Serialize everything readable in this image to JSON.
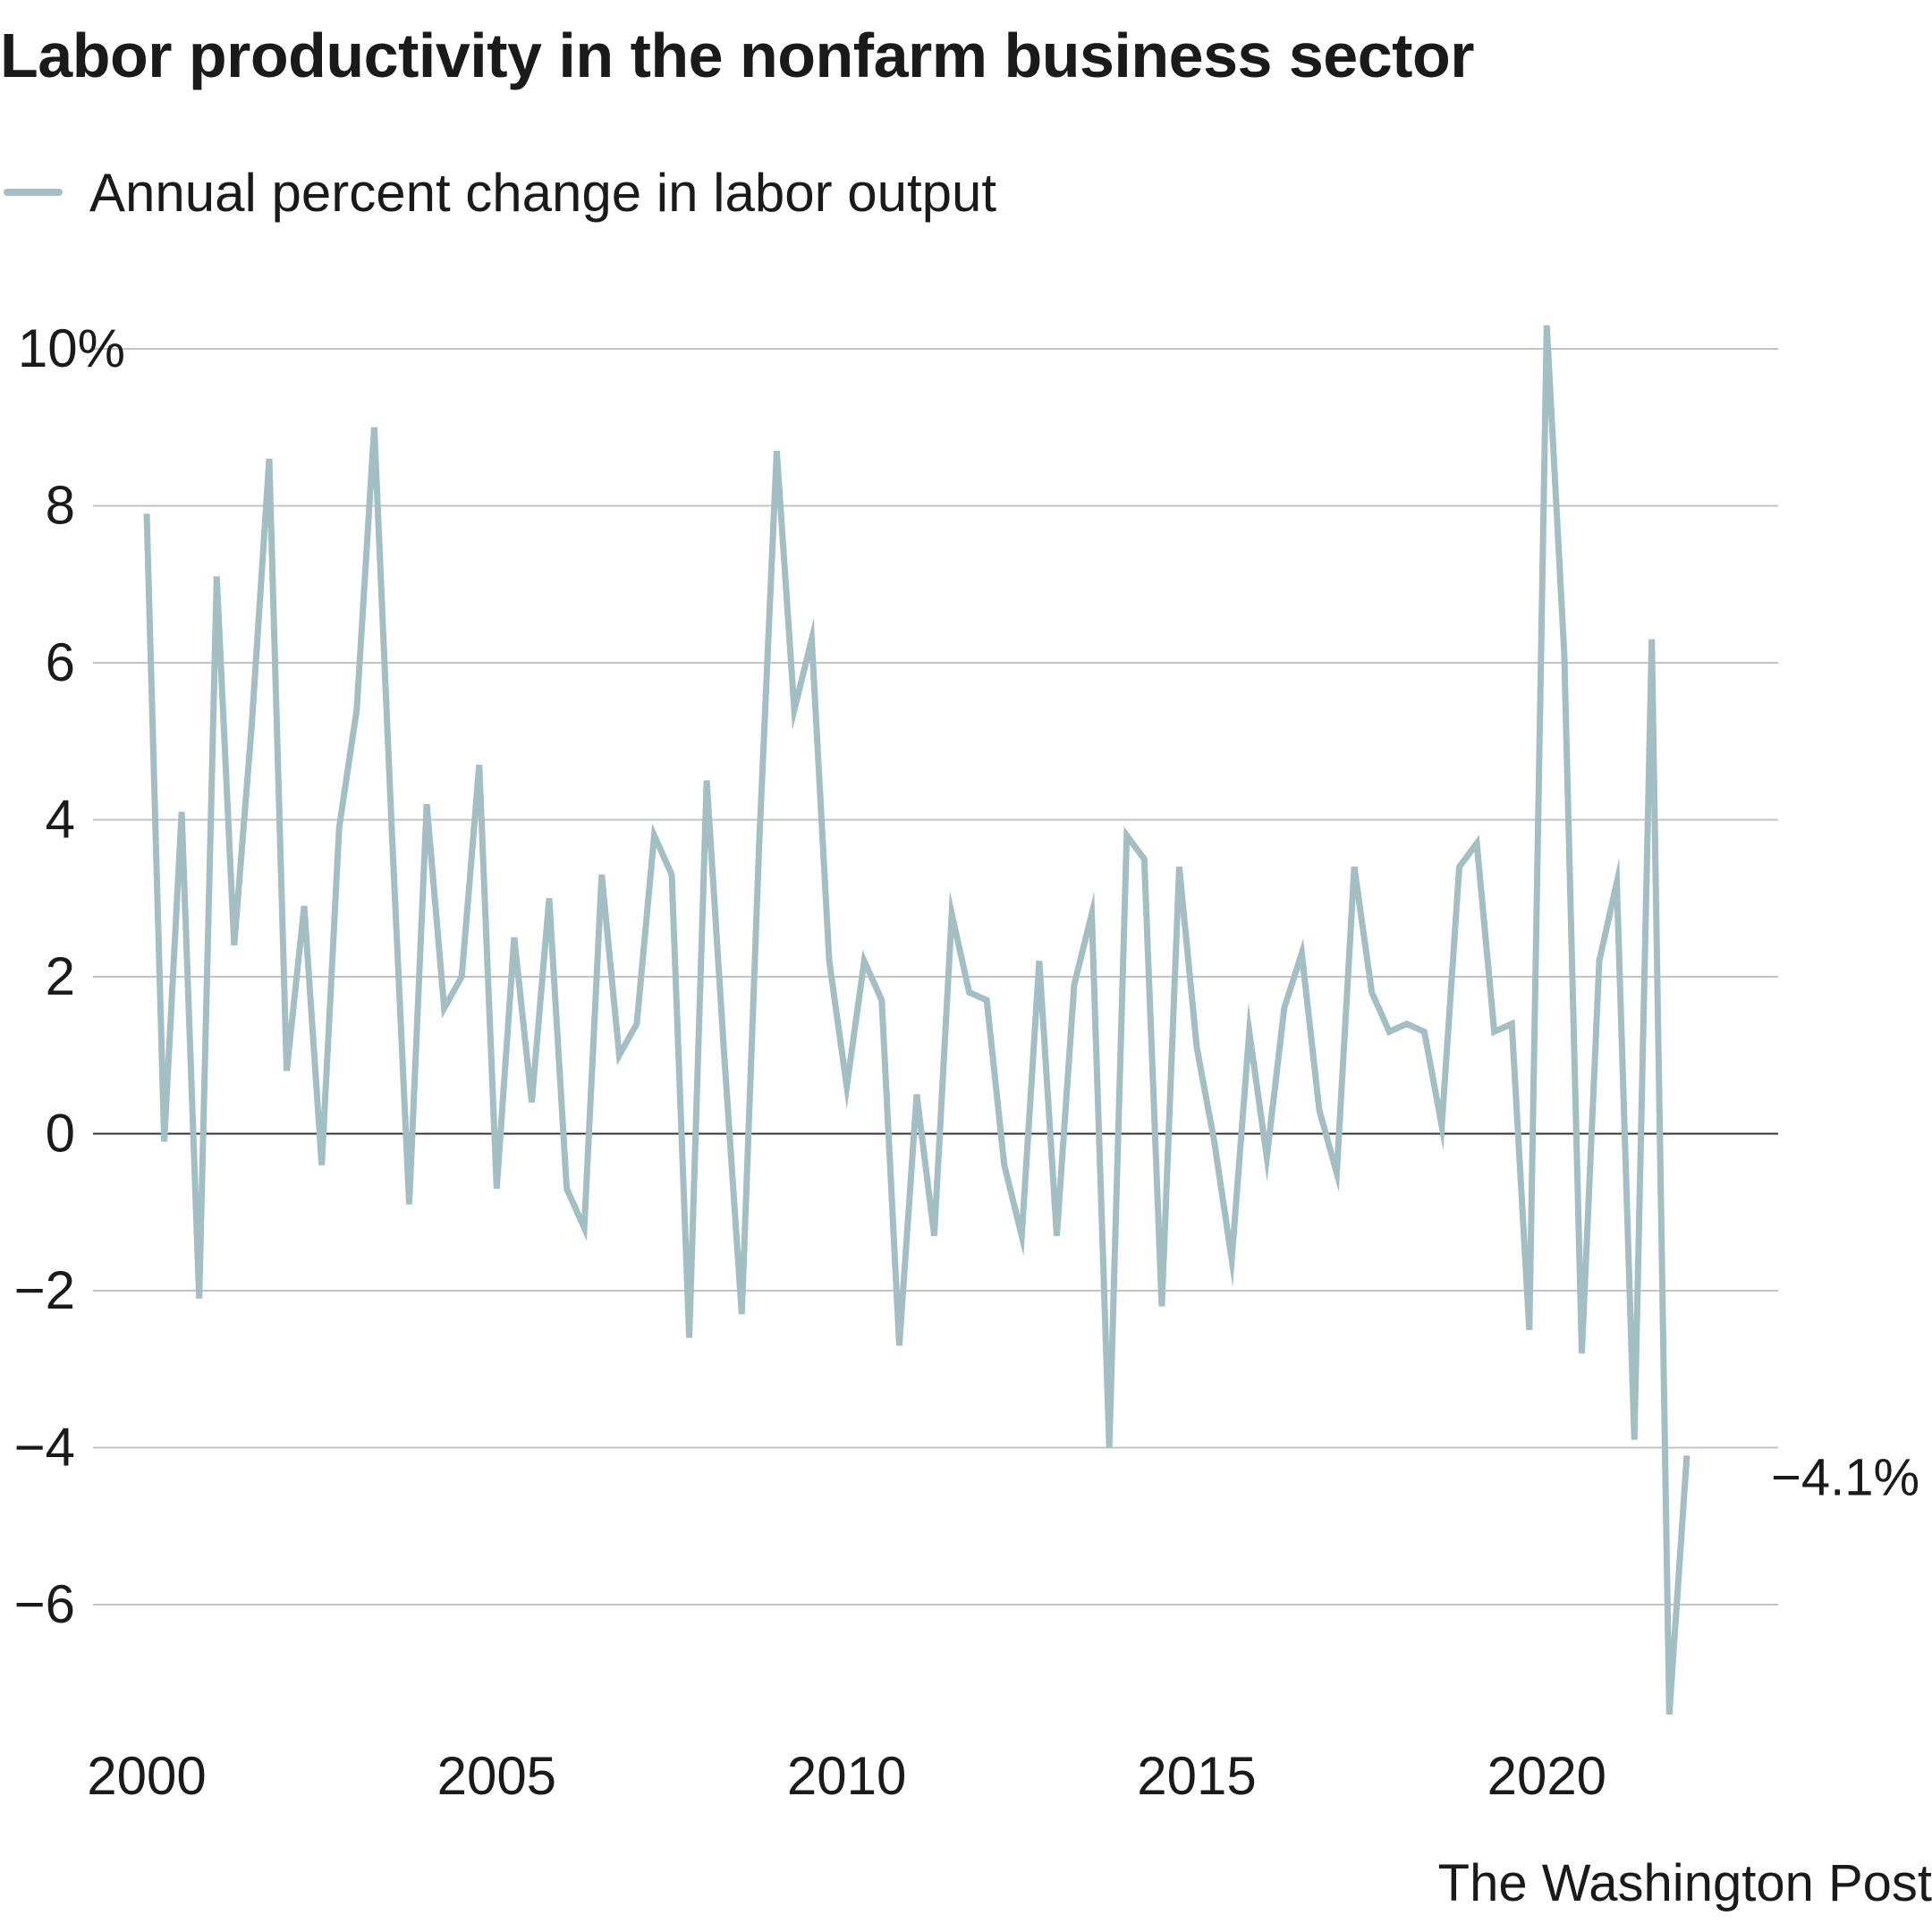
{
  "title": "Labor productivity in the nonfarm business sector",
  "legend": {
    "label": "Annual percent change in labor output",
    "color": "#a3bfc4"
  },
  "credit": "The Washington Post",
  "chart_data": {
    "type": "line",
    "title": "Labor productivity in the nonfarm business sector",
    "xlabel": "",
    "ylabel": "",
    "x_start": 2000,
    "x_step": 0.25,
    "xlim": [
      2000,
      2022.5
    ],
    "ylim": [
      -7.5,
      10.5
    ],
    "y_ticks": [
      {
        "value": 10,
        "label": "10%"
      },
      {
        "value": 8,
        "label": "8"
      },
      {
        "value": 6,
        "label": "6"
      },
      {
        "value": 4,
        "label": "4"
      },
      {
        "value": 2,
        "label": "2"
      },
      {
        "value": 0,
        "label": "0"
      },
      {
        "value": -2,
        "label": "−2"
      },
      {
        "value": -4,
        "label": "−4"
      },
      {
        "value": -6,
        "label": "−6"
      }
    ],
    "x_ticks": [
      {
        "value": 2000,
        "label": "2000"
      },
      {
        "value": 2005,
        "label": "2005"
      },
      {
        "value": 2010,
        "label": "2010"
      },
      {
        "value": 2015,
        "label": "2015"
      },
      {
        "value": 2020,
        "label": "2020"
      }
    ],
    "end_label": "−4.1%",
    "series": [
      {
        "name": "Annual percent change in labor output",
        "color": "#a3bfc4",
        "values": [
          7.9,
          -0.1,
          4.1,
          -2.1,
          7.1,
          2.4,
          5.2,
          8.6,
          0.8,
          2.9,
          -0.4,
          3.9,
          5.4,
          9.0,
          3.9,
          -0.9,
          4.2,
          1.6,
          2.0,
          4.7,
          -0.7,
          2.5,
          0.4,
          3.0,
          -0.7,
          -1.2,
          3.3,
          1.0,
          1.4,
          3.8,
          3.3,
          -2.6,
          4.5,
          1.0,
          -2.3,
          3.7,
          8.7,
          5.4,
          6.3,
          2.2,
          0.6,
          2.2,
          1.7,
          -2.7,
          0.5,
          -1.3,
          2.8,
          1.8,
          1.7,
          -0.4,
          -1.3,
          2.2,
          -1.3,
          1.9,
          2.8,
          -4.0,
          3.8,
          3.5,
          -2.2,
          3.4,
          1.1,
          -0.1,
          -1.6,
          1.3,
          -0.3,
          1.6,
          2.3,
          0.3,
          -0.5,
          3.4,
          1.8,
          1.3,
          1.4,
          1.3,
          0.1,
          3.4,
          3.7,
          1.3,
          1.4,
          -2.5,
          10.3,
          6.1,
          -2.8,
          2.2,
          3.2,
          -3.9,
          6.3,
          -7.4,
          -4.1
        ]
      }
    ]
  }
}
